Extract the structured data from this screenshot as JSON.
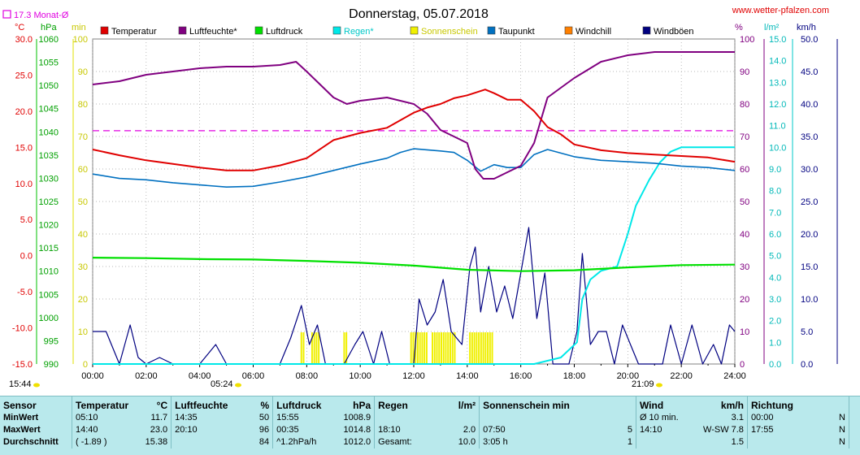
{
  "header": {
    "title": "Donnerstag, 05.07.2018",
    "site": "www.wetter-pfalzen.com",
    "monthly_avg": "17.3 Monat-Ø"
  },
  "axes": {
    "temp_unit": "°C",
    "pressure_unit": "hPa",
    "sun_unit": "min",
    "humidity_unit": "%",
    "rain_unit": "l/m²",
    "wind_unit": "km/h",
    "temp_ticks": [
      "30.0",
      "25.0",
      "20.0",
      "15.0",
      "10.0",
      "5.0",
      "0.0",
      "-5.0",
      "-10.0",
      "-15.0"
    ],
    "pressure_ticks": [
      "1060",
      "1055",
      "1050",
      "1045",
      "1040",
      "1035",
      "1030",
      "1025",
      "1020",
      "1015",
      "1010",
      "1005",
      "1000",
      "995",
      "990"
    ],
    "sun_ticks": [
      "100",
      "90",
      "80",
      "70",
      "60",
      "50",
      "40",
      "30",
      "20",
      "10",
      "0"
    ],
    "humidity_ticks": [
      "100",
      "90",
      "80",
      "70",
      "60",
      "50",
      "40",
      "30",
      "20",
      "10",
      "0"
    ],
    "rain_ticks": [
      "15.0",
      "14.0",
      "13.0",
      "12.0",
      "11.0",
      "10.0",
      "9.0",
      "8.0",
      "7.0",
      "6.0",
      "5.0",
      "4.0",
      "3.0",
      "2.0",
      "1.0",
      "0.0"
    ],
    "wind_ticks": [
      "50.0",
      "45.0",
      "40.0",
      "35.0",
      "30.0",
      "25.0",
      "20.0",
      "15.0",
      "10.0",
      "5.0",
      "0.0"
    ],
    "time_ticks": [
      "00:00",
      "02:00",
      "04:00",
      "06:00",
      "08:00",
      "10:00",
      "12:00",
      "14:00",
      "16:00",
      "18:00",
      "20:00",
      "22:00",
      "24:00"
    ]
  },
  "markers": {
    "left_time": "15:44",
    "sunrise": "05:24",
    "sunset": "21:09"
  },
  "colors": {
    "temperature": "#e00000",
    "humidity": "#800080",
    "pressure": "#00e000",
    "rain": "#00e8e8",
    "sunshine": "#f0f000",
    "dewpoint": "#0070c0",
    "windchill": "#ff8000",
    "gusts": "#000080",
    "month_avg": "#e000e0"
  },
  "chart_data": {
    "type": "line",
    "x_unit": "hours",
    "xlim": [
      0,
      24
    ],
    "series": [
      {
        "name": "Temperatur",
        "unit": "°C",
        "x": [
          0,
          1,
          2,
          3,
          4,
          5,
          6,
          7,
          8,
          9,
          10,
          11,
          12,
          12.5,
          13,
          13.5,
          14,
          14.67,
          15,
          15.5,
          16,
          16.5,
          17,
          17.5,
          18,
          19,
          20,
          21,
          22,
          23,
          24
        ],
        "values": [
          14.7,
          13.9,
          13.2,
          12.7,
          12.2,
          11.8,
          11.8,
          12.5,
          13.5,
          16.0,
          17.0,
          17.7,
          19.8,
          20.5,
          21.0,
          21.8,
          22.2,
          23.0,
          22.5,
          21.6,
          21.6,
          20.0,
          17.8,
          16.8,
          15.4,
          14.6,
          14.2,
          14.0,
          13.8,
          13.6,
          13.0
        ]
      },
      {
        "name": "Luftfeuchte*",
        "unit": "%",
        "x": [
          0,
          1,
          2,
          3,
          4,
          5,
          6,
          7,
          7.6,
          8,
          8.5,
          9,
          9.5,
          10,
          11,
          12,
          12.5,
          13,
          13.5,
          14,
          14.3,
          14.6,
          15,
          15.5,
          16,
          16.5,
          17,
          17.5,
          18,
          19,
          20,
          21,
          22,
          23,
          24
        ],
        "values": [
          86,
          87,
          89,
          90,
          91,
          91.5,
          91.5,
          92,
          93,
          90,
          86,
          82,
          80,
          81,
          82,
          80,
          77,
          72,
          70,
          68,
          60,
          57,
          57,
          59,
          61,
          68,
          82,
          85,
          88,
          93,
          95,
          96,
          96,
          96,
          96
        ]
      },
      {
        "name": "Luftdruck",
        "unit": "hPa",
        "x": [
          0,
          2,
          4,
          6,
          8,
          10,
          12,
          14,
          16,
          18,
          20,
          22,
          24
        ],
        "values": [
          1012.9,
          1012.8,
          1012.6,
          1012.5,
          1012.2,
          1011.8,
          1011.2,
          1010.3,
          1010.0,
          1010.2,
          1010.8,
          1011.3,
          1011.4
        ]
      },
      {
        "name": "Regen*",
        "unit": "l/m²",
        "x": [
          0,
          16.5,
          17.5,
          18.1,
          18.3,
          18.6,
          19,
          19.6,
          20,
          20.3,
          20.8,
          21.2,
          21.6,
          22,
          23,
          24
        ],
        "values": [
          0,
          0,
          0.3,
          1,
          3,
          3.9,
          4.3,
          4.5,
          6.0,
          7.3,
          8.5,
          9.3,
          9.8,
          10.0,
          10.0,
          10.0
        ]
      },
      {
        "name": "Sonnenschein",
        "unit": "min",
        "intervals": [
          [
            7.8,
            7.95
          ],
          [
            8.2,
            8.5
          ],
          [
            9.4,
            9.5
          ],
          [
            11.9,
            12.5
          ],
          [
            12.7,
            13.6
          ],
          [
            14.1,
            15.0
          ]
        ]
      },
      {
        "name": "Taupunkt",
        "unit": "°C",
        "x": [
          0,
          1,
          2,
          3,
          4,
          5,
          6,
          7,
          8,
          9,
          10,
          11,
          11.5,
          12,
          13,
          13.5,
          14,
          14.5,
          15,
          15.5,
          16,
          16.5,
          17,
          18,
          19,
          20,
          21,
          22,
          23,
          24
        ],
        "values": [
          11.3,
          10.7,
          10.5,
          10.1,
          9.8,
          9.5,
          9.6,
          10.2,
          10.9,
          11.8,
          12.7,
          13.5,
          14.3,
          14.8,
          14.5,
          14.3,
          13.2,
          11.7,
          12.6,
          12.2,
          12.2,
          14.0,
          14.7,
          13.7,
          13.2,
          13.0,
          12.8,
          12.4,
          12.2,
          11.8
        ]
      },
      {
        "name": "Windchill",
        "unit": "°C"
      },
      {
        "name": "Windböen",
        "unit": "km/h",
        "x": [
          0,
          0.5,
          1,
          1.4,
          1.7,
          2,
          2.5,
          3,
          3.5,
          4,
          4.6,
          5,
          5.5,
          6,
          6.5,
          7,
          7.4,
          7.8,
          8.1,
          8.4,
          8.7,
          9,
          9.4,
          9.8,
          10.1,
          10.5,
          10.8,
          11.1,
          11.5,
          12,
          12.2,
          12.5,
          12.8,
          13.1,
          13.4,
          13.8,
          14.1,
          14.3,
          14.5,
          14.8,
          15.1,
          15.4,
          15.7,
          16,
          16.3,
          16.6,
          16.9,
          17.2,
          17.5,
          17.8,
          18.1,
          18.3,
          18.6,
          18.9,
          19.2,
          19.5,
          19.8,
          20.1,
          20.4,
          20.7,
          21,
          21.3,
          21.6,
          22,
          22.4,
          22.8,
          23.2,
          23.5,
          23.8,
          24
        ],
        "values": [
          5,
          5,
          0,
          6,
          1,
          0,
          1,
          0,
          0,
          0,
          3,
          0,
          0,
          0,
          0,
          0,
          4,
          9,
          3,
          6,
          0,
          0,
          0,
          3,
          5,
          0,
          5,
          0,
          0,
          0,
          10,
          6,
          8,
          13,
          5,
          3,
          15,
          18,
          8,
          15,
          8,
          12,
          7,
          14,
          21,
          7,
          14,
          0,
          0,
          0,
          5,
          17,
          3,
          5,
          5,
          0,
          6,
          3,
          0,
          0,
          0,
          0,
          6,
          0,
          6,
          0,
          3,
          0,
          6,
          5
        ]
      }
    ],
    "month_avg_temp": 17.3
  },
  "legend": [
    {
      "label": "Temperatur",
      "color": "#e00000"
    },
    {
      "label": "Luftfeuchte*",
      "color": "#800080"
    },
    {
      "label": "Luftdruck",
      "color": "#00e000"
    },
    {
      "label": "Regen*",
      "color": "#00e8e8"
    },
    {
      "label": "Sonnenschein",
      "color": "#f0f000"
    },
    {
      "label": "Taupunkt",
      "color": "#0070c0"
    },
    {
      "label": "Windchill",
      "color": "#ff8000"
    },
    {
      "label": "Windböen",
      "color": "#000080"
    }
  ],
  "summary": {
    "headers": {
      "sensor": "Sensor",
      "temp": "Temperatur",
      "temp_unit": "°C",
      "hum": "Luftfeuchte",
      "hum_unit": "%",
      "press": "Luftdruck",
      "press_unit": "hPa",
      "rain": "Regen",
      "rain_unit": "l/m²",
      "sun": "Sonnenschein min",
      "wind": "Wind",
      "wind_unit": "km/h",
      "dir": "Richtung"
    },
    "rows": [
      {
        "label": "MinWert",
        "temp_t": "05:10",
        "temp_v": "11.7",
        "hum_t": "14:35",
        "hum_v": "50",
        "press_t": "15:55",
        "press_v": "1008.9",
        "rain_t": "",
        "rain_v": "",
        "sun_t": "",
        "sun_v": "",
        "wind_t": "Ø 10 min.",
        "wind_v": "3.1",
        "dir_t": "00:00",
        "dir_v": "N"
      },
      {
        "label": "MaxWert",
        "temp_t": "14:40",
        "temp_v": "23.0",
        "hum_t": "20:10",
        "hum_v": "96",
        "press_t": "00:35",
        "press_v": "1014.8",
        "rain_t": "18:10",
        "rain_v": "2.0",
        "sun_t": "07:50",
        "sun_v": "5",
        "wind_t": "14:10",
        "wind_v": "W-SW 7.8",
        "dir_t": "17:55",
        "dir_v": "N"
      },
      {
        "label": "Durchschnitt",
        "temp_t": "( -1.89 )",
        "temp_v": "15.38",
        "hum_t": "",
        "hum_v": "84",
        "press_t": "^1.2hPa/h",
        "press_v": "1012.0",
        "rain_t": "Gesamt:",
        "rain_v": "10.0",
        "sun_t": "3:05 h",
        "sun_v": "1",
        "wind_t": "",
        "wind_v": "1.5",
        "dir_t": "",
        "dir_v": "N"
      }
    ]
  }
}
